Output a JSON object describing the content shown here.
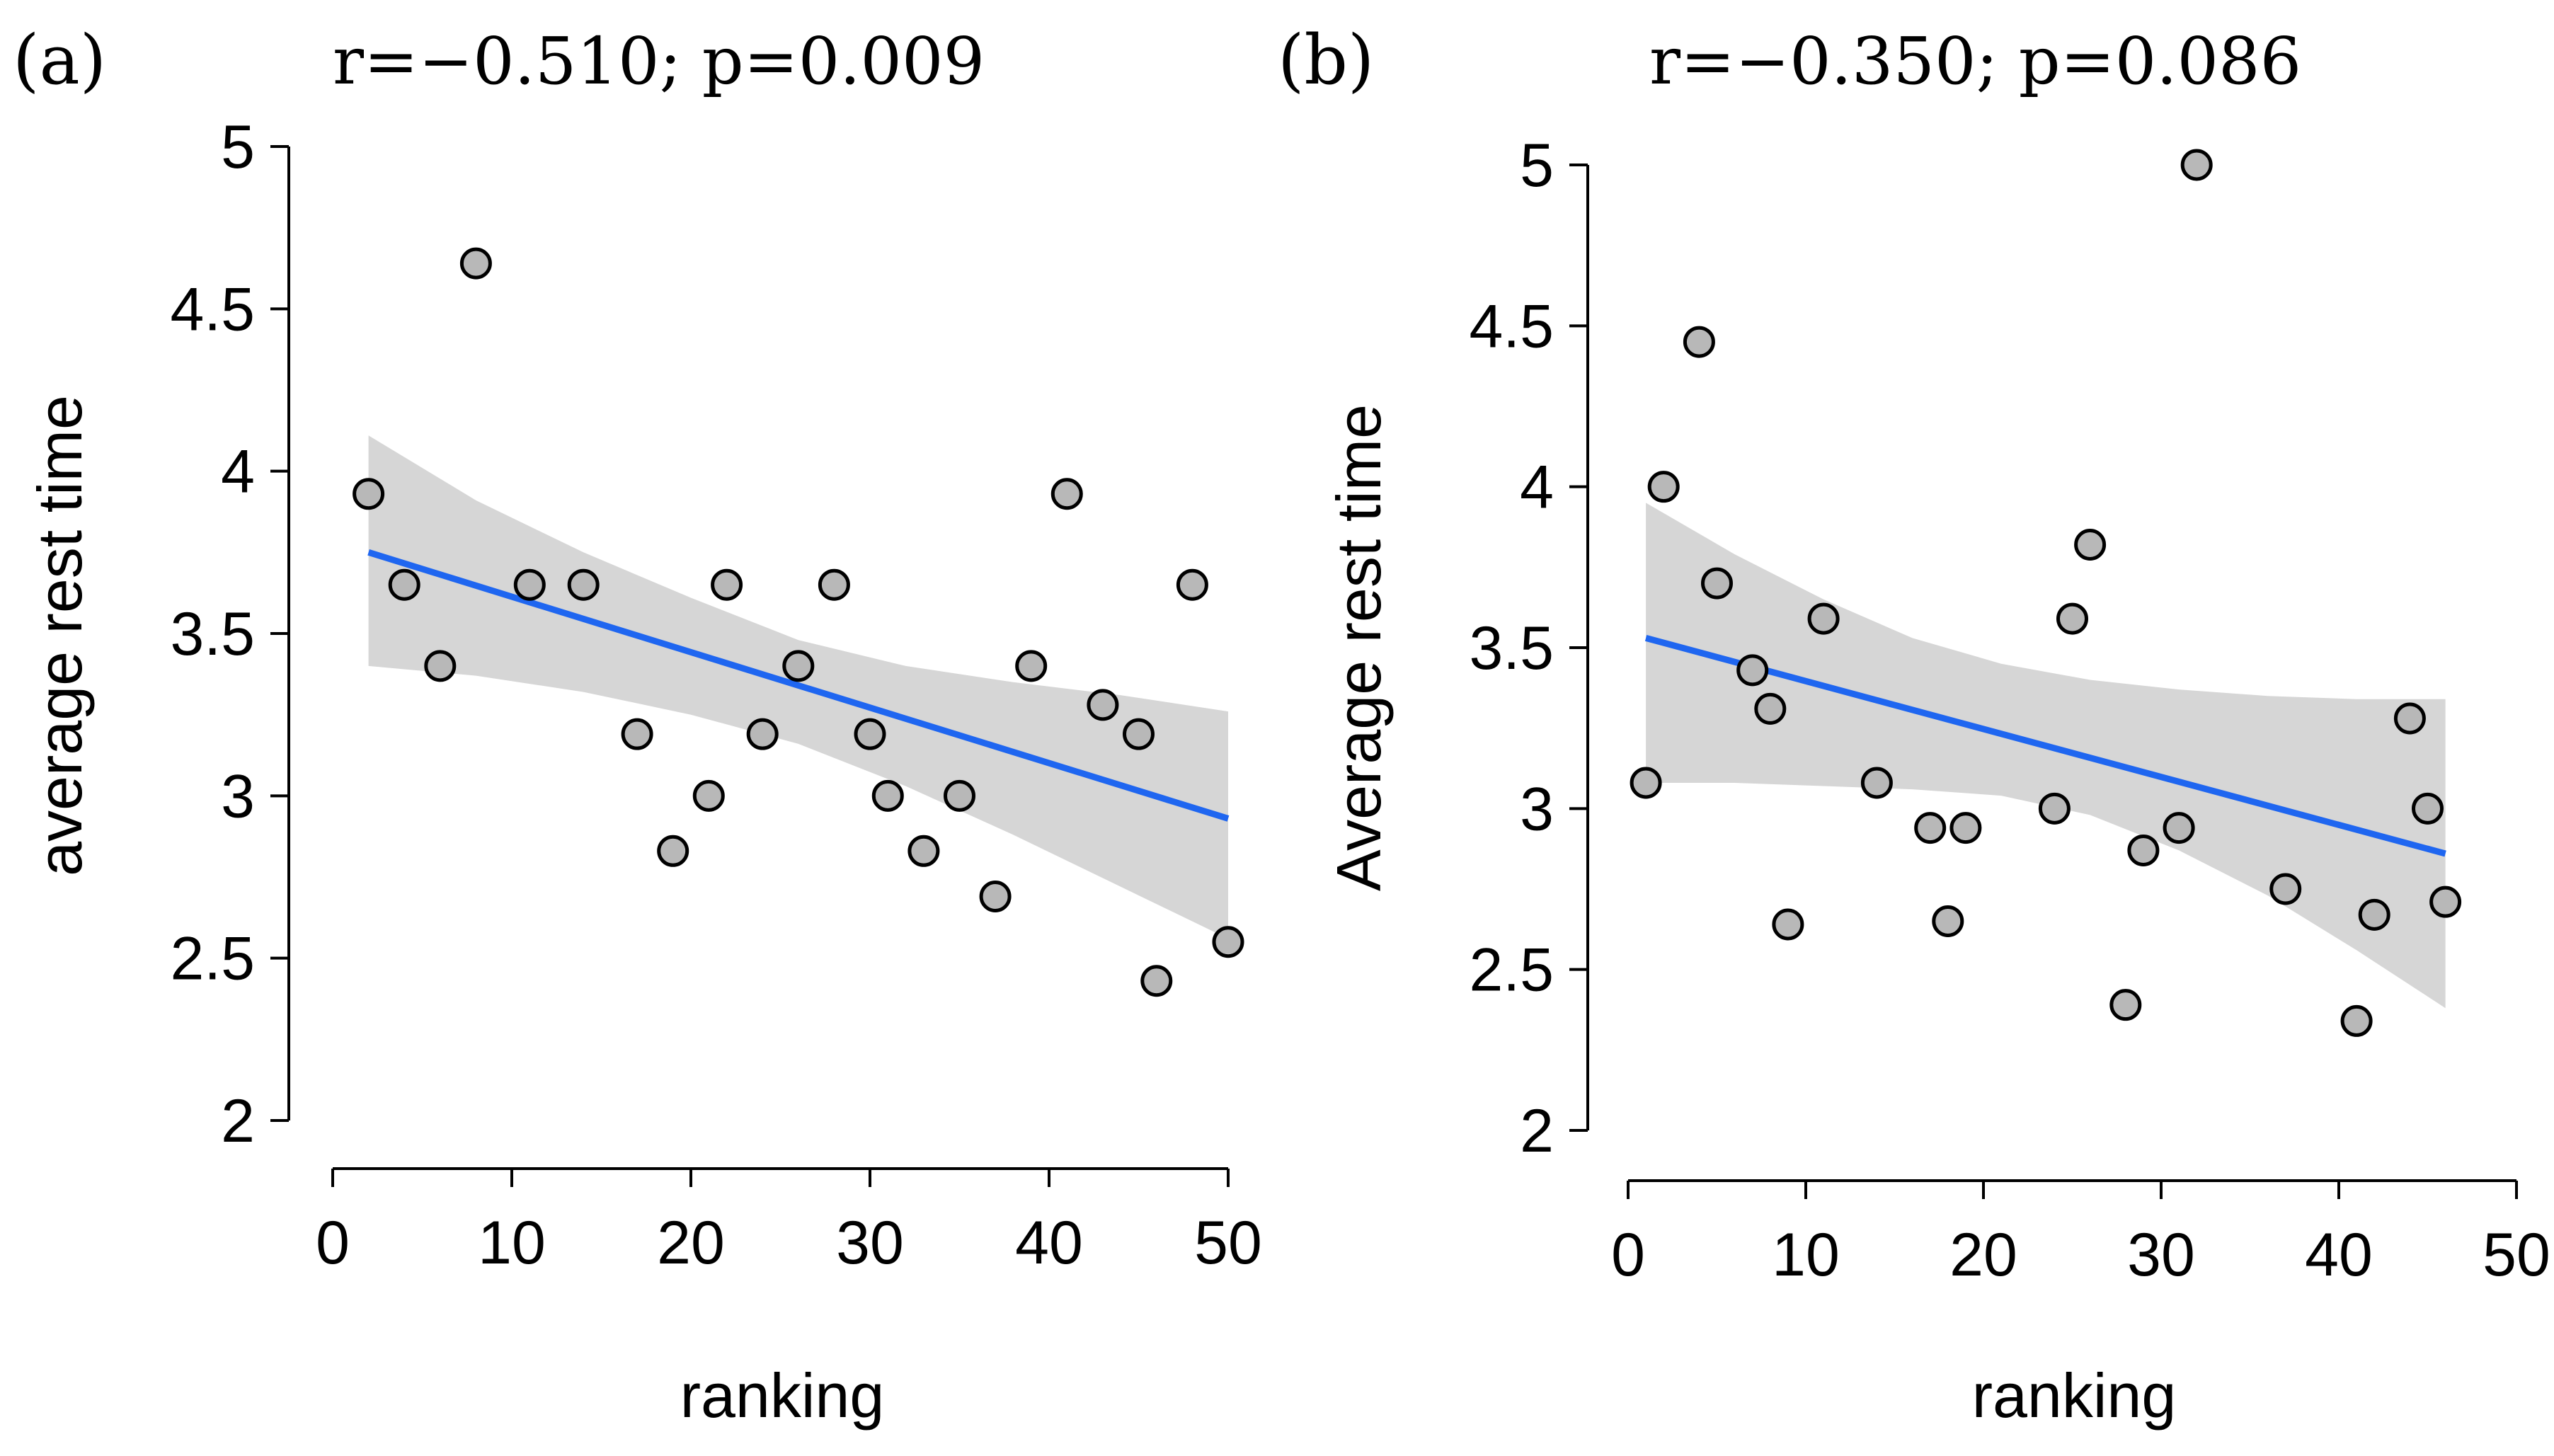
{
  "colors": {
    "point_fill": "#b8b8b8",
    "ci_band": "#d6d6d6",
    "fit_line": "#1f66f0",
    "axis": "#000000"
  },
  "chart_data": [
    {
      "type": "scatter",
      "panel_label": "(a)",
      "stats_label": "r=−0.510; p=0.009",
      "xlabel": "ranking",
      "ylabel": "average rest time",
      "xlim": [
        0,
        50
      ],
      "ylim": [
        2,
        5
      ],
      "xticks": [
        0,
        10,
        20,
        30,
        40,
        50
      ],
      "yticks": [
        2,
        2.5,
        3,
        3.5,
        4,
        4.5,
        5
      ],
      "xtick_labels": [
        "0",
        "10",
        "20",
        "30",
        "40",
        "50"
      ],
      "ytick_labels": [
        "2",
        "2.5",
        "3",
        "3.5",
        "4",
        "4.5",
        "5"
      ],
      "points": [
        {
          "x": 2,
          "y": 3.93
        },
        {
          "x": 4,
          "y": 3.65
        },
        {
          "x": 6,
          "y": 3.4
        },
        {
          "x": 8,
          "y": 4.64
        },
        {
          "x": 11,
          "y": 3.65
        },
        {
          "x": 14,
          "y": 3.65
        },
        {
          "x": 17,
          "y": 3.19
        },
        {
          "x": 19,
          "y": 2.83
        },
        {
          "x": 21,
          "y": 3.0
        },
        {
          "x": 22,
          "y": 3.65
        },
        {
          "x": 24,
          "y": 3.19
        },
        {
          "x": 26,
          "y": 3.4
        },
        {
          "x": 28,
          "y": 3.65
        },
        {
          "x": 30,
          "y": 3.19
        },
        {
          "x": 31,
          "y": 3.0
        },
        {
          "x": 33,
          "y": 2.83
        },
        {
          "x": 35,
          "y": 3.0
        },
        {
          "x": 37,
          "y": 2.69
        },
        {
          "x": 39,
          "y": 3.4
        },
        {
          "x": 41,
          "y": 3.93
        },
        {
          "x": 43,
          "y": 3.28
        },
        {
          "x": 45,
          "y": 3.19
        },
        {
          "x": 46,
          "y": 2.43
        },
        {
          "x": 48,
          "y": 3.65
        },
        {
          "x": 50,
          "y": 2.55
        }
      ],
      "fit": {
        "x": [
          2,
          50
        ],
        "y": [
          3.75,
          2.93
        ]
      },
      "ci_band": {
        "x": [
          2,
          8,
          14,
          20,
          26,
          32,
          38,
          44,
          50
        ],
        "upper": [
          4.11,
          3.91,
          3.75,
          3.61,
          3.48,
          3.4,
          3.35,
          3.31,
          3.26
        ],
        "lower": [
          3.4,
          3.37,
          3.32,
          3.25,
          3.16,
          3.03,
          2.88,
          2.72,
          2.56
        ]
      }
    },
    {
      "type": "scatter",
      "panel_label": "(b)",
      "stats_label": "r=−0.350; p=0.086",
      "xlabel": "ranking",
      "ylabel": "Average rest time",
      "xlim": [
        0,
        50
      ],
      "ylim": [
        2,
        5
      ],
      "xticks": [
        0,
        10,
        20,
        30,
        40,
        50
      ],
      "yticks": [
        2,
        2.5,
        3,
        3.5,
        4,
        4.5,
        5
      ],
      "xtick_labels": [
        "0",
        "10",
        "20",
        "30",
        "40",
        "50"
      ],
      "ytick_labels": [
        "2",
        "2.5",
        "3",
        "3.5",
        "4",
        "4.5",
        "5"
      ],
      "points": [
        {
          "x": 1,
          "y": 3.08
        },
        {
          "x": 2,
          "y": 4.0
        },
        {
          "x": 4,
          "y": 4.45
        },
        {
          "x": 5,
          "y": 3.7
        },
        {
          "x": 7,
          "y": 3.43
        },
        {
          "x": 8,
          "y": 3.31
        },
        {
          "x": 9,
          "y": 2.64
        },
        {
          "x": 11,
          "y": 3.59
        },
        {
          "x": 14,
          "y": 3.08
        },
        {
          "x": 17,
          "y": 2.94
        },
        {
          "x": 18,
          "y": 2.65
        },
        {
          "x": 19,
          "y": 2.94
        },
        {
          "x": 24,
          "y": 3.0
        },
        {
          "x": 25,
          "y": 3.59
        },
        {
          "x": 26,
          "y": 3.82
        },
        {
          "x": 28,
          "y": 2.39
        },
        {
          "x": 29,
          "y": 2.87
        },
        {
          "x": 31,
          "y": 2.94
        },
        {
          "x": 32,
          "y": 5.0
        },
        {
          "x": 37,
          "y": 2.75
        },
        {
          "x": 41,
          "y": 2.34
        },
        {
          "x": 42,
          "y": 2.67
        },
        {
          "x": 44,
          "y": 3.28
        },
        {
          "x": 45,
          "y": 3.0
        },
        {
          "x": 46,
          "y": 2.71
        }
      ],
      "fit": {
        "x": [
          1,
          46
        ],
        "y": [
          3.53,
          2.86
        ]
      },
      "ci_band": {
        "x": [
          1,
          6,
          11,
          16,
          21,
          26,
          31,
          36,
          41,
          46
        ],
        "upper": [
          3.95,
          3.79,
          3.65,
          3.53,
          3.45,
          3.4,
          3.37,
          3.35,
          3.34,
          3.34
        ],
        "lower": [
          3.08,
          3.08,
          3.07,
          3.06,
          3.04,
          2.98,
          2.87,
          2.73,
          2.56,
          2.38
        ]
      }
    }
  ]
}
